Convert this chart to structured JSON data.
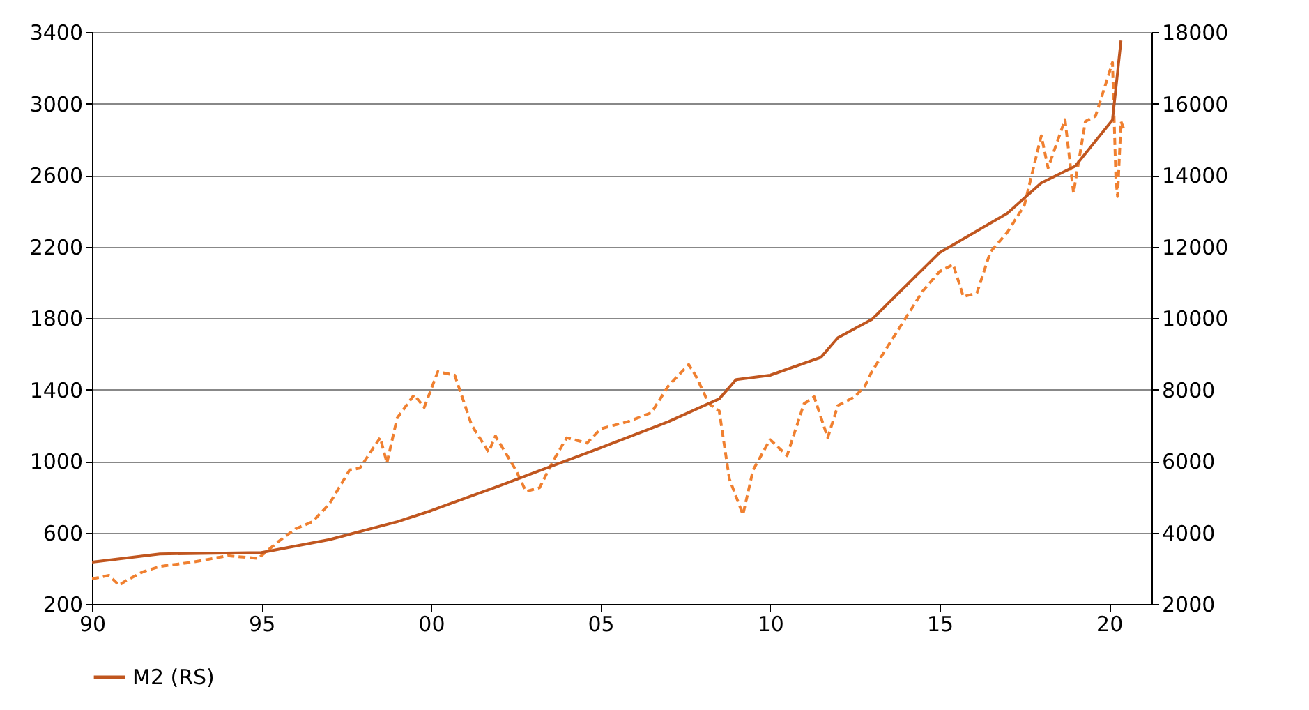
{
  "chart_data": {
    "type": "line",
    "legend": "bottom",
    "grid": "y",
    "xlim": [
      1990,
      2021.25
    ],
    "xticks": [
      {
        "value": 1990,
        "label": "90"
      },
      {
        "value": 1995,
        "label": "95"
      },
      {
        "value": 2000,
        "label": "00"
      },
      {
        "value": 2005,
        "label": "05"
      },
      {
        "value": 2010,
        "label": "10"
      },
      {
        "value": 2015,
        "label": "15"
      },
      {
        "value": 2020,
        "label": "20"
      }
    ],
    "ylim": [
      200,
      3400
    ],
    "yticks": [
      200,
      600,
      1000,
      1400,
      1800,
      2200,
      2600,
      3000,
      3400
    ],
    "y2lim": [
      2000,
      18000
    ],
    "y2ticks": [
      2000,
      4000,
      6000,
      8000,
      10000,
      12000,
      14000,
      16000,
      18000
    ],
    "series": [
      {
        "color": "#f08030",
        "line_style": "dashed",
        "x": [
          1990.0,
          1990.5,
          1990.8,
          1991.0,
          1991.5,
          1992,
          1993,
          1994,
          1994.9,
          1995.5,
          1996,
          1996.5,
          1997,
          1997.6,
          1997.9,
          1998.5,
          1998.7,
          1999,
          1999.5,
          1999.8,
          2000.2,
          2000.7,
          2001.2,
          2001.7,
          2001.9,
          2002.5,
          2002.8,
          2003.2,
          2003.6,
          2004,
          2004.6,
          2005,
          2005.8,
          2006.5,
          2007,
          2007.6,
          2007.8,
          2008.2,
          2008.5,
          2008.8,
          2009.2,
          2009.5,
          2010,
          2010.5,
          2011,
          2011.3,
          2011.7,
          2012,
          2012.5,
          2012.8,
          2013,
          2013.5,
          2014,
          2014.5,
          2015,
          2015.4,
          2015.7,
          2016.1,
          2016.5,
          2017,
          2017.5,
          2018,
          2018.2,
          2018.7,
          2018.95,
          2019.3,
          2019.6,
          2020.1,
          2020.2,
          2020.25,
          2020.35,
          2020.45
        ],
        "values": [
          340,
          360,
          305,
          330,
          380,
          410,
          435,
          470,
          455,
          550,
          620,
          660,
          760,
          950,
          960,
          1130,
          990,
          1240,
          1370,
          1300,
          1500,
          1480,
          1200,
          1050,
          1140,
          950,
          830,
          850,
          1000,
          1130,
          1100,
          1180,
          1220,
          1270,
          1420,
          1540,
          1480,
          1320,
          1280,
          900,
          700,
          950,
          1120,
          1030,
          1320,
          1360,
          1130,
          1310,
          1360,
          1420,
          1500,
          1650,
          1800,
          1950,
          2060,
          2100,
          1920,
          1940,
          2170,
          2280,
          2430,
          2820,
          2640,
          2910,
          2500,
          2900,
          2930,
          3230,
          2580,
          2480,
          2900,
          2850
        ]
      },
      {
        "name": "M2 (RS)",
        "color": "#c0561f",
        "line_style": "solid",
        "axis": "y2",
        "x": [
          1990,
          1992,
          1995,
          1997,
          1999,
          2000,
          2002,
          2005,
          2007,
          2008.5,
          2009,
          2010,
          2011.5,
          2012,
          2013,
          2015,
          2017,
          2018,
          2019,
          2020.1,
          2020.35
        ],
        "values": [
          3170,
          3400,
          3440,
          3800,
          4300,
          4610,
          5300,
          6370,
          7100,
          7740,
          8280,
          8400,
          8900,
          9450,
          9960,
          11830,
          12930,
          13780,
          14250,
          15540,
          17760
        ]
      }
    ]
  }
}
